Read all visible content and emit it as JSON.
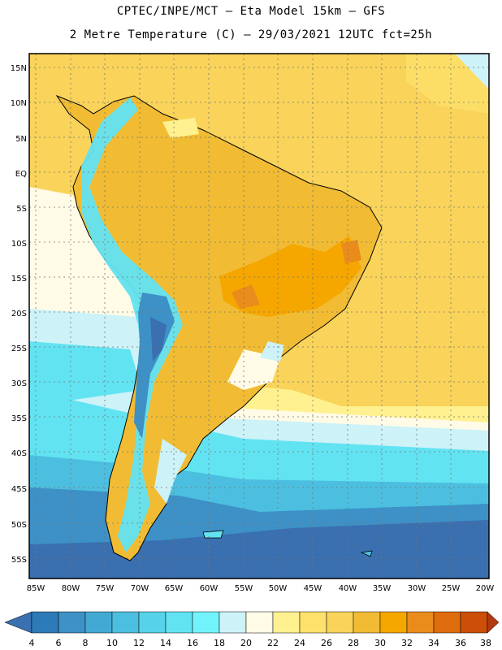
{
  "header": {
    "line1": "CPTEC/INPE/MCT –  Eta Model 15km – GFS",
    "line2": "2 Metre Temperature (C) – 29/03/2021 12UTC fct=25h"
  },
  "map": {
    "lat_labels": [
      "15N",
      "10N",
      "5N",
      "EQ",
      "5S",
      "10S",
      "15S",
      "20S",
      "25S",
      "30S",
      "35S",
      "40S",
      "45S",
      "50S",
      "55S"
    ],
    "lon_labels": [
      "85W",
      "80W",
      "75W",
      "70W",
      "65W",
      "60W",
      "55W",
      "50W",
      "45W",
      "40W",
      "35W",
      "30W",
      "25W",
      "20W"
    ]
  },
  "legend": {
    "values": [
      "4",
      "6",
      "8",
      "10",
      "12",
      "14",
      "16",
      "18",
      "20",
      "22",
      "24",
      "26",
      "28",
      "30",
      "32",
      "34",
      "36",
      "38"
    ],
    "colors": [
      "#3a6fb0",
      "#2d7ab9",
      "#3d91c6",
      "#42a9d3",
      "#4cbfe0",
      "#56d2e9",
      "#62e3f2",
      "#72f3fb",
      "#cdf2f8",
      "#fffbe6",
      "#fff18f",
      "#fde16a",
      "#f9d35a",
      "#f1bc33",
      "#f5a700",
      "#ea8c1c",
      "#df6c0d",
      "#cc4e09",
      "#b23a0f"
    ]
  }
}
